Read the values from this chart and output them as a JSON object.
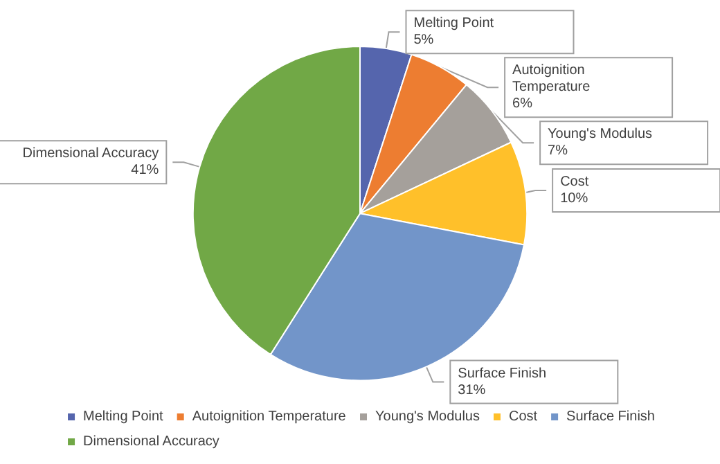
{
  "chart_data": {
    "type": "pie",
    "categories": [
      "Melting Point",
      "Autoignition Temperature",
      "Young's Modulus",
      "Cost",
      "Surface Finish",
      "Dimensional Accuracy"
    ],
    "values": [
      5,
      6,
      7,
      10,
      31,
      41
    ],
    "value_labels": [
      "5%",
      "6%",
      "7%",
      "10%",
      "31%",
      "41%"
    ],
    "colors": [
      "#5565ad",
      "#ed7d31",
      "#a5a09b",
      "#ffc02a",
      "#7295c9",
      "#71a846"
    ],
    "legend": "bottom"
  }
}
